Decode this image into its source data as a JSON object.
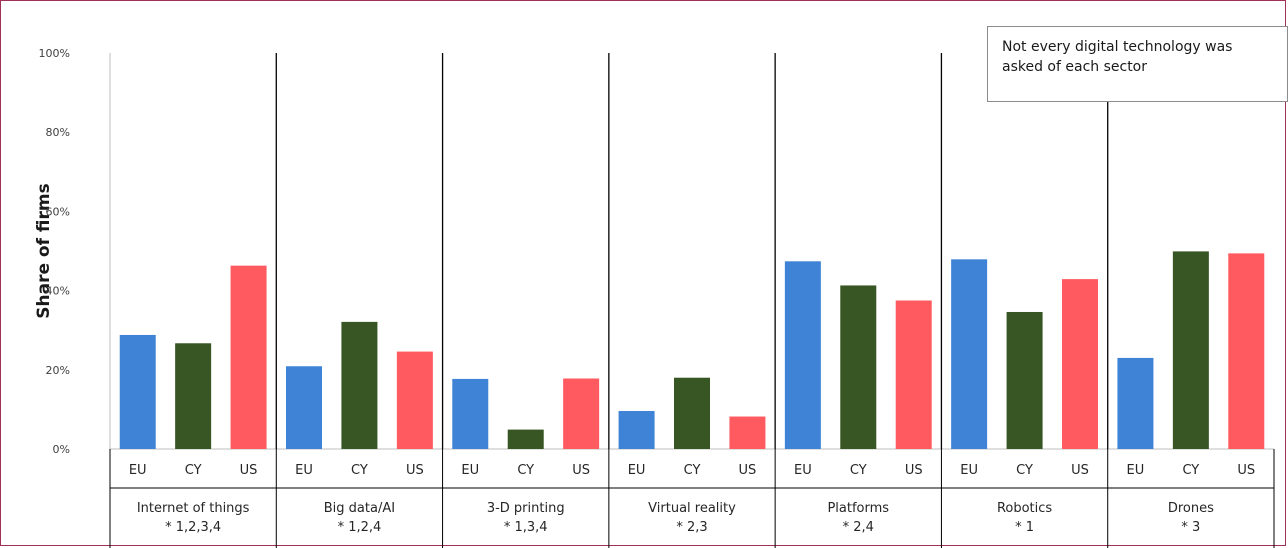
{
  "chart_data": {
    "type": "bar",
    "ylabel": "Share of firms",
    "ylim": [
      0,
      100
    ],
    "yticks": [
      "0%",
      "20%",
      "40%",
      "60%",
      "80%",
      "100%"
    ],
    "yticks_values": [
      0,
      20,
      40,
      60,
      80,
      100
    ],
    "subcategories": [
      "EU",
      "CY",
      "US"
    ],
    "colors": {
      "EU": "#3f83d6",
      "CY": "#375623",
      "US": "#ff5a5f"
    },
    "groups": [
      {
        "label": "Internet of things",
        "note": "* 1,2,3,4",
        "values": [
          28.8,
          26.7,
          46.3
        ]
      },
      {
        "label": "Big data/AI",
        "note": "* 1,2,4",
        "values": [
          20.9,
          32.1,
          24.6
        ]
      },
      {
        "label": "3-D printing",
        "note": "* 1,3,4",
        "values": [
          17.7,
          4.9,
          17.8
        ]
      },
      {
        "label": "Virtual reality",
        "note": "* 2,3",
        "values": [
          9.6,
          18.0,
          8.2
        ]
      },
      {
        "label": "Platforms",
        "note": "* 2,4",
        "values": [
          47.4,
          41.3,
          37.5
        ]
      },
      {
        "label": "Robotics",
        "note": "* 1",
        "values": [
          47.9,
          34.6,
          42.9
        ]
      },
      {
        "label": "Drones",
        "note": "* 3",
        "values": [
          23.0,
          49.9,
          49.4
        ]
      }
    ],
    "grid": false
  },
  "annotation": {
    "text": "Not every digital technology was asked of each sector"
  }
}
